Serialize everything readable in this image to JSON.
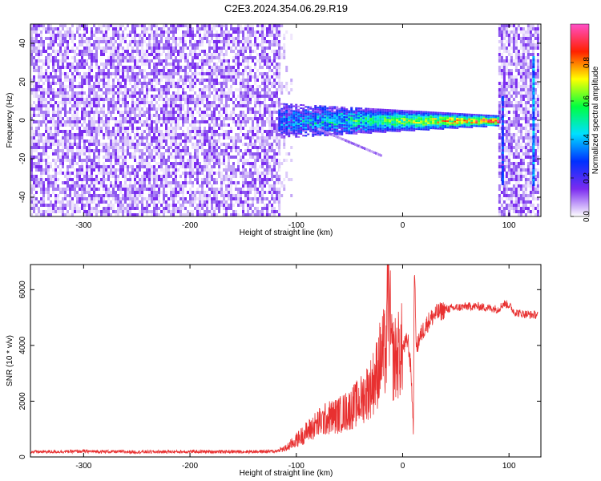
{
  "chart_data": [
    {
      "type": "heatmap",
      "title": "C2E3.2024.354.06.29.R19",
      "xlabel": "Height of straight line (km)",
      "ylabel": "Frequency (Hz)",
      "xlim": [
        -350,
        130
      ],
      "ylim": [
        -50,
        50
      ],
      "xticks": [
        -300,
        -200,
        -100,
        0,
        100
      ],
      "yticks": [
        -40,
        -20,
        0,
        20,
        40
      ],
      "colorbar": {
        "label": "Normalized spectral amplitude",
        "range": [
          0.0,
          1.0
        ],
        "ticks": [
          0.0,
          0.2,
          0.4,
          0.6,
          0.8
        ],
        "tick_labels": [
          "0.0",
          "0.2",
          "0.4",
          "0.6",
          "0.8"
        ],
        "colors": [
          "#ffffff",
          "#7b2cf0",
          "#0030ff",
          "#00e0ff",
          "#00ff40",
          "#ffff00",
          "#ff2000",
          "#ff50c8"
        ]
      },
      "regions": [
        {
          "x_range": [
            -350,
            -117
          ],
          "freq_range": [
            -50,
            50
          ],
          "description_amplitude": 0.15
        },
        {
          "x_range": [
            -117,
            90
          ],
          "center_freq": 0,
          "spread_hz": 4,
          "peak_amplitude": 0.85
        },
        {
          "x_range": [
            90,
            127
          ],
          "freq_range": [
            -50,
            50
          ],
          "description_amplitude": 0.1
        }
      ]
    },
    {
      "type": "line",
      "xlabel": "Height of straight line (km)",
      "ylabel": "SNR (10 * v/v)",
      "xlim": [
        -350,
        130
      ],
      "ylim": [
        0,
        6900
      ],
      "xticks": [
        -300,
        -200,
        -100,
        0,
        100
      ],
      "yticks": [
        0,
        2000,
        4000,
        6000
      ],
      "series": [
        {
          "color": "#e83030",
          "x": [
            -350,
            -300,
            -250,
            -200,
            -150,
            -120,
            -110,
            -100,
            -90,
            -80,
            -70,
            -60,
            -50,
            -40,
            -30,
            -25,
            -20,
            -15,
            -14,
            -10,
            -5,
            0,
            5,
            8,
            10,
            11,
            13,
            15,
            20,
            25,
            30,
            35,
            40,
            50,
            60,
            70,
            80,
            90,
            95,
            100,
            105,
            110,
            120,
            127
          ],
          "y": [
            180,
            200,
            180,
            190,
            190,
            200,
            300,
            600,
            900,
            1200,
            1400,
            1500,
            1700,
            2000,
            2500,
            2900,
            3600,
            3800,
            6500,
            3500,
            3600,
            3900,
            4200,
            3000,
            1000,
            6800,
            3800,
            4200,
            4600,
            4900,
            5100,
            5200,
            5300,
            5350,
            5400,
            5400,
            5350,
            5300,
            5500,
            5450,
            5200,
            5150,
            5100,
            5100
          ]
        }
      ]
    }
  ]
}
